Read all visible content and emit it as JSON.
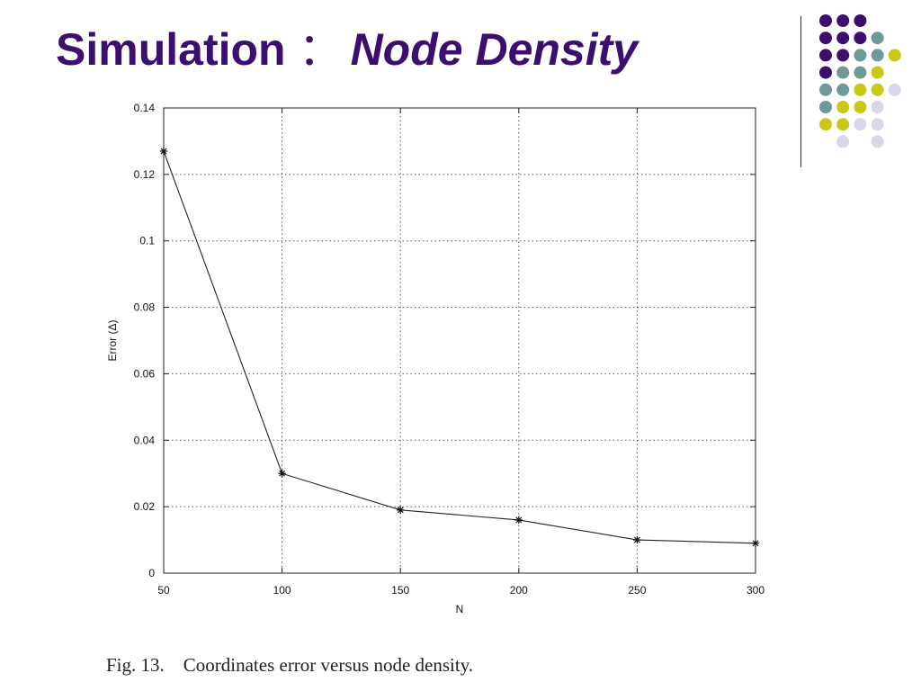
{
  "slide": {
    "title": "Simulation",
    "separator": "：",
    "subtitle": "Node Density",
    "caption": "Fig. 13.    Coordinates error versus node density."
  },
  "colors": {
    "title": "#3b0f6e",
    "dot_purple": "#3b0f6e",
    "dot_teal": "#6b9a98",
    "dot_yellow": "#c8c817",
    "dot_lavender": "#d9d6ea"
  },
  "decoration": {
    "dot_grid": [
      [
        "purple",
        "purple",
        "purple",
        "",
        "",
        ""
      ],
      [
        "purple",
        "purple",
        "purple",
        "teal",
        "",
        ""
      ],
      [
        "purple",
        "purple",
        "teal",
        "teal",
        "yellow",
        ""
      ],
      [
        "purple",
        "teal",
        "teal",
        "yellow",
        "",
        ""
      ],
      [
        "teal",
        "teal",
        "yellow",
        "yellow",
        "lavender",
        ""
      ],
      [
        "teal",
        "yellow",
        "yellow",
        "lavender",
        "",
        ""
      ],
      [
        "yellow",
        "yellow",
        "lavender",
        "lavender",
        "",
        ""
      ],
      [
        "",
        "lavender",
        "",
        "lavender",
        "",
        ""
      ]
    ]
  },
  "chart_data": {
    "type": "line",
    "title": "",
    "xlabel": "N",
    "ylabel": "Error (Δ)",
    "x": [
      50,
      100,
      150,
      200,
      250,
      300
    ],
    "series": [
      {
        "values": [
          0.127,
          0.03,
          0.019,
          0.016,
          0.01,
          0.009
        ]
      }
    ],
    "xlim": [
      50,
      300
    ],
    "ylim": [
      0,
      0.14
    ],
    "xticks": [
      "50",
      "100",
      "150",
      "200",
      "250",
      "300"
    ],
    "yticks": [
      "0",
      "0.02",
      "0.04",
      "0.06",
      "0.08",
      "0.1",
      "0.12",
      "0.14"
    ],
    "marker": "asterisk",
    "grid": true,
    "legend": "none"
  }
}
